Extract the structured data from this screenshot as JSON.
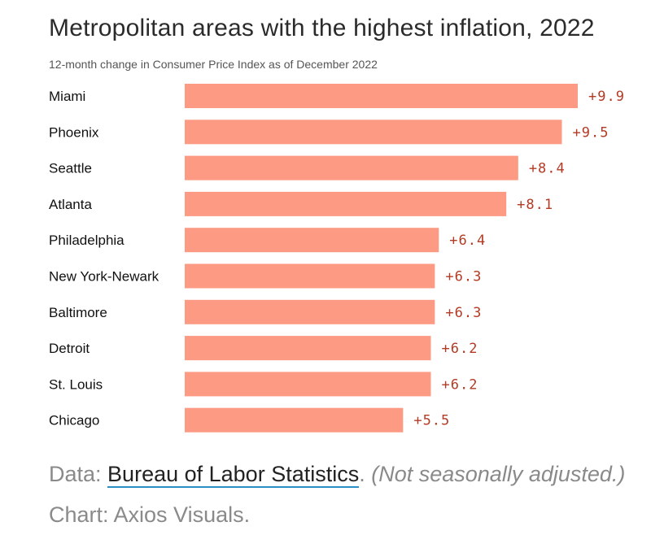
{
  "chart_data": {
    "type": "bar",
    "orientation": "horizontal",
    "title": "Metropolitan areas with the highest inflation, 2022",
    "subtitle": "12-month change in Consumer Price Index as of December 2022",
    "categories": [
      "Miami",
      "Phoenix",
      "Seattle",
      "Atlanta",
      "Philadelphia",
      "New York-Newark",
      "Baltimore",
      "Detroit",
      "St. Louis",
      "Chicago"
    ],
    "values": [
      9.9,
      9.5,
      8.4,
      8.1,
      6.4,
      6.3,
      6.3,
      6.2,
      6.2,
      5.5
    ],
    "value_labels": [
      "+9.9",
      "+9.5",
      "+8.4",
      "+8.1",
      "+6.4",
      "+6.3",
      "+6.3",
      "+6.2",
      "+6.2",
      "+5.5"
    ],
    "xlim": [
      0,
      9.9
    ],
    "xlabel": "",
    "ylabel": "",
    "grid": false,
    "bar_color": "#fc9a83",
    "label_color": "#b33b24"
  },
  "footer": {
    "data_prefix": "Data: ",
    "source_link": "Bureau of Labor Statistics",
    "after_link": ". ",
    "note": "(Not seasonally adjusted.)",
    "credit": " Chart: Axios Visuals."
  }
}
